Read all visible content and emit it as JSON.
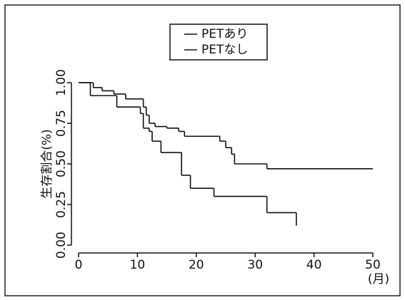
{
  "chart_data": {
    "type": "step",
    "y_label": "生存割合(%)",
    "x_label": "(月)",
    "xlim": [
      0,
      50
    ],
    "xticks": [
      0,
      10,
      20,
      30,
      40,
      50
    ],
    "ylim": [
      0,
      1
    ],
    "yticks": [
      {
        "value": 0,
        "label": "0.00"
      },
      {
        "value": 0.25,
        "label": "0.25"
      },
      {
        "value": 0.5,
        "label": "0.50"
      },
      {
        "value": 0.75,
        "label": "0.75"
      },
      {
        "value": 1,
        "label": "1.00"
      }
    ],
    "series": [
      {
        "name": "PETあり",
        "color": "#111111",
        "x": [
          0,
          2.5,
          4,
          6,
          8,
          11,
          11.5,
          12,
          13,
          15,
          17,
          18,
          24,
          25,
          26,
          26.5,
          32,
          50
        ],
        "values": [
          1.0,
          0.97,
          0.95,
          0.93,
          0.9,
          0.85,
          0.8,
          0.75,
          0.73,
          0.72,
          0.7,
          0.67,
          0.64,
          0.6,
          0.56,
          0.5,
          0.47,
          0.47
        ]
      },
      {
        "name": "PETなし",
        "color": "#111111",
        "x": [
          0,
          2,
          6.5,
          10.5,
          11,
          12,
          12.5,
          14,
          17.5,
          19,
          23,
          32,
          37
        ],
        "values": [
          1.0,
          0.92,
          0.85,
          0.81,
          0.72,
          0.7,
          0.64,
          0.57,
          0.43,
          0.35,
          0.3,
          0.2,
          0.12
        ]
      }
    ]
  }
}
